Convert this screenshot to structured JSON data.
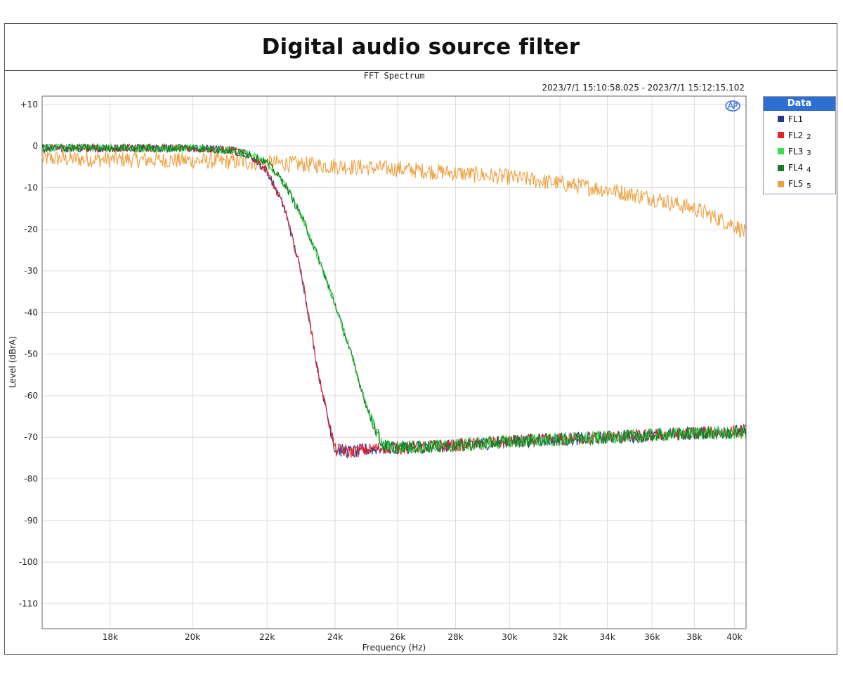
{
  "page": {
    "title": "Digital audio source filter"
  },
  "chart_data": {
    "type": "line",
    "title": "FFT Spectrum",
    "timestamp_start": "2023/7/1 15:10:58.025 -",
    "timestamp_end": "2023/7/1 15:12:15.102",
    "xlabel": "Frequency (Hz)",
    "ylabel": "Level (dBrA)",
    "x_scale": "log",
    "xlim": [
      16500,
      40600
    ],
    "ylim": [
      -116,
      12
    ],
    "x_ticks": [
      18000,
      20000,
      22000,
      24000,
      26000,
      28000,
      30000,
      32000,
      34000,
      36000,
      38000,
      40000
    ],
    "x_tick_labels": [
      "18k",
      "20k",
      "22k",
      "24k",
      "26k",
      "28k",
      "30k",
      "32k",
      "34k",
      "36k",
      "38k",
      "40k"
    ],
    "y_ticks": [
      10,
      0,
      -10,
      -20,
      -30,
      -40,
      -50,
      -60,
      -70,
      -80,
      -90,
      -100,
      -110
    ],
    "y_tick_labels": [
      "+10",
      "0",
      "-10",
      "-20",
      "-30",
      "-40",
      "-50",
      "-60",
      "-70",
      "-80",
      "-90",
      "-100",
      "-110"
    ],
    "grid": true,
    "legend": {
      "title": "Data",
      "placement": "right"
    },
    "series": [
      {
        "name": "FL1",
        "suffix": "",
        "color": "#1f3a8f",
        "x": [
          16500,
          18000,
          20000,
          21000,
          21500,
          22000,
          22500,
          23000,
          23500,
          24000,
          24500,
          25000,
          25500,
          26000,
          28000,
          30000,
          32000,
          34000,
          36000,
          38000,
          40600
        ],
        "values": [
          -0.5,
          -0.5,
          -0.5,
          -1,
          -2,
          -6,
          -15,
          -31,
          -55,
          -73,
          -73.5,
          -73,
          -72.5,
          -72.5,
          -72,
          -71,
          -70.5,
          -70,
          -69.5,
          -69,
          -68.5
        ]
      },
      {
        "name": "FL2",
        "suffix": "2",
        "color": "#e8202a",
        "x": [
          16500,
          18000,
          20000,
          21000,
          21500,
          22000,
          22500,
          23000,
          23500,
          24000,
          24500,
          25000,
          25500,
          26000,
          28000,
          30000,
          32000,
          34000,
          36000,
          38000,
          40600
        ],
        "values": [
          -0.5,
          -0.5,
          -0.5,
          -1,
          -2,
          -6,
          -15,
          -31,
          -55,
          -73,
          -73.5,
          -73,
          -72.5,
          -72.5,
          -72,
          -71,
          -70.5,
          -70,
          -69.5,
          -69,
          -68.5
        ]
      },
      {
        "name": "FL3",
        "suffix": "3",
        "color": "#34e050",
        "x": [
          16500,
          18000,
          20000,
          21000,
          21500,
          22000,
          22500,
          23000,
          23500,
          24000,
          24500,
          25000,
          25500,
          26000,
          28000,
          30000,
          32000,
          34000,
          36000,
          38000,
          40600
        ],
        "values": [
          -0.5,
          -0.5,
          -0.5,
          -1,
          -2,
          -4,
          -9,
          -17,
          -27,
          -38,
          -50,
          -63,
          -72,
          -72.5,
          -72,
          -71,
          -70.5,
          -70,
          -69.5,
          -69,
          -69
        ]
      },
      {
        "name": "FL4",
        "suffix": "4",
        "color": "#1a7a22",
        "x": [
          16500,
          18000,
          20000,
          21000,
          21500,
          22000,
          22500,
          23000,
          23500,
          24000,
          24500,
          25000,
          25500,
          26000,
          28000,
          30000,
          32000,
          34000,
          36000,
          38000,
          40600
        ],
        "values": [
          -0.5,
          -0.5,
          -0.5,
          -1,
          -2,
          -4,
          -9,
          -17,
          -27,
          -38,
          -50,
          -63,
          -72,
          -72.5,
          -72,
          -71,
          -70.5,
          -70,
          -69.5,
          -69,
          -69
        ]
      },
      {
        "name": "FL5",
        "suffix": "5",
        "color": "#f0a040",
        "x": [
          16500,
          18000,
          20000,
          22000,
          24000,
          26000,
          28000,
          30000,
          32000,
          34000,
          36000,
          38000,
          40000,
          40600
        ],
        "values": [
          -3,
          -3.2,
          -3.5,
          -4,
          -4.8,
          -5.5,
          -6.5,
          -7.5,
          -9,
          -10.5,
          -12.5,
          -15,
          -19,
          -21
        ]
      }
    ]
  }
}
